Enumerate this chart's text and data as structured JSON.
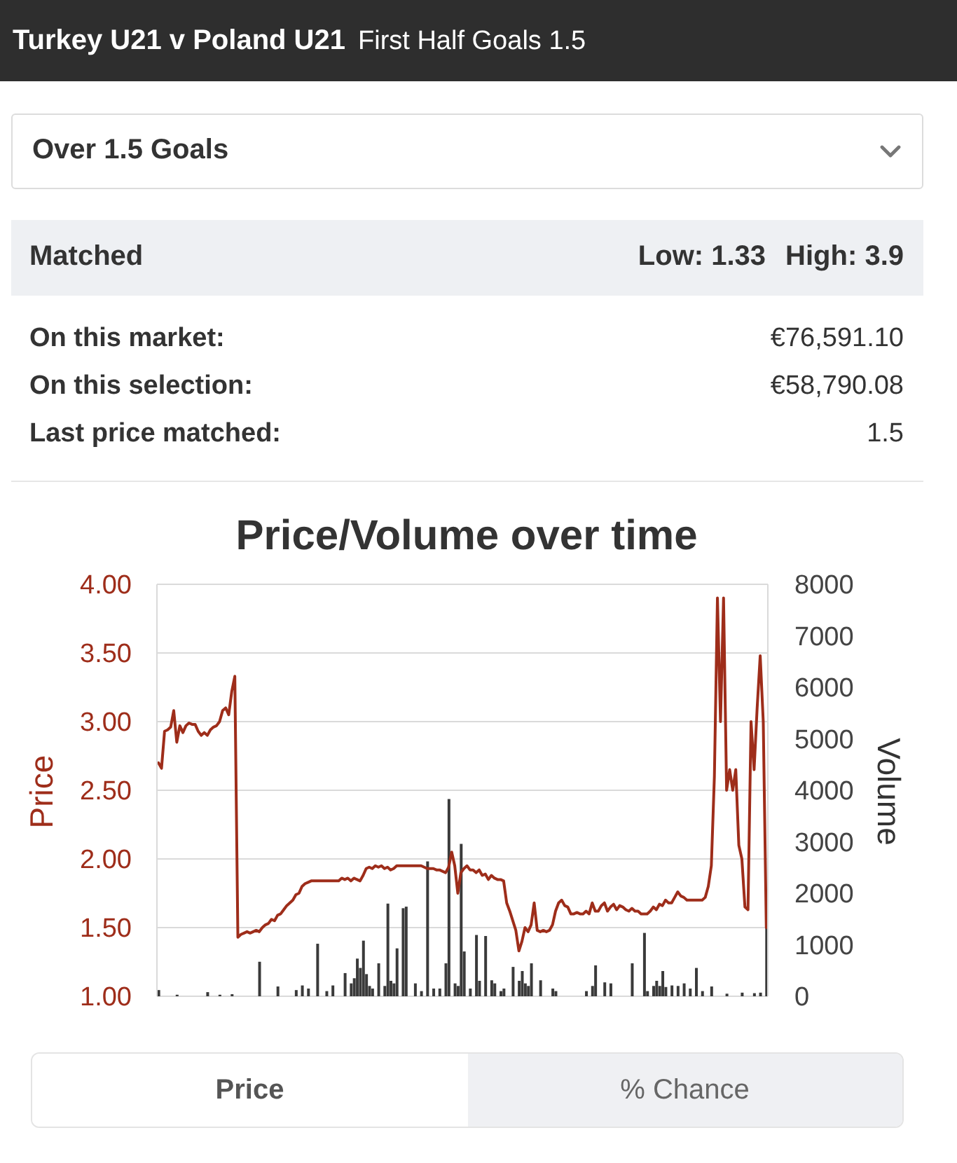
{
  "chart_data": {
    "type": "line",
    "title": "Price/Volume over time",
    "ylabel": "Price",
    "y2label": "Volume",
    "annotations": [
      "Turkey U21 v Poland U21",
      "First Half Goals 1.5",
      "Over 1.5 Goals",
      "Matched",
      "Low: 1.33",
      "High: 3.9",
      "On this market:",
      "€76,591.10",
      "On this selection:",
      "€58,790.08",
      "Last price matched:",
      "1.5",
      "Price",
      "% Chance"
    ],
    "categories": [
      null,
      null,
      null,
      null,
      null,
      null,
      null,
      null,
      null,
      null,
      null,
      null,
      null,
      null,
      null,
      null,
      null,
      null,
      null,
      null,
      null,
      null,
      null,
      null,
      null,
      null,
      null,
      null,
      null,
      null,
      null,
      null,
      null,
      null,
      null,
      null,
      null,
      null,
      null,
      null,
      null,
      null,
      null,
      null,
      null,
      null,
      null,
      null,
      null,
      null,
      null,
      null,
      null,
      null,
      null,
      null,
      null,
      null,
      null,
      null,
      null,
      null,
      null,
      null,
      null,
      null,
      null,
      null,
      null,
      null,
      null,
      null,
      null,
      null,
      null,
      null,
      null,
      null,
      null,
      null,
      null,
      null,
      null,
      null,
      null,
      null,
      null,
      null,
      null,
      null,
      null,
      null,
      null,
      null,
      null,
      null,
      null,
      null,
      null,
      null,
      null,
      null,
      null,
      null,
      null,
      null,
      null,
      null,
      null,
      null,
      null,
      null,
      null,
      null,
      null,
      null,
      null,
      null,
      null,
      null,
      null,
      null,
      null,
      null,
      null,
      null,
      null,
      null,
      null,
      null,
      null,
      null,
      null,
      null,
      null,
      null,
      null,
      null,
      null,
      null,
      null,
      null,
      null,
      null,
      null,
      null,
      null,
      null,
      null,
      null,
      null,
      null,
      null,
      null,
      null,
      null,
      null,
      null,
      null,
      null,
      null,
      null,
      null,
      null,
      null,
      null,
      null,
      null,
      null,
      null,
      null,
      null,
      null,
      null,
      null,
      null,
      null,
      null,
      null,
      null,
      null,
      null,
      null,
      null,
      null,
      null,
      null,
      null,
      null,
      null,
      null,
      null,
      null,
      null,
      null,
      null,
      null,
      null,
      null,
      null
    ],
    "series": [
      {
        "type": "bar",
        "axis": "y2",
        "color": "#3a3a3a",
        "values": [
          120,
          null,
          null,
          null,
          null,
          null,
          30,
          null,
          null,
          null,
          null,
          null,
          null,
          null,
          null,
          null,
          80,
          null,
          null,
          null,
          30,
          null,
          null,
          null,
          40,
          null,
          null,
          null,
          null,
          null,
          null,
          null,
          null,
          670,
          null,
          null,
          null,
          null,
          null,
          190,
          null,
          null,
          null,
          null,
          null,
          120,
          null,
          210,
          null,
          150,
          null,
          null,
          1020,
          null,
          null,
          100,
          null,
          210,
          null,
          null,
          null,
          450,
          null,
          250,
          350,
          730,
          550,
          1080,
          430,
          200,
          150,
          null,
          640,
          null,
          200,
          1800,
          300,
          250,
          930,
          null,
          1710,
          1740,
          null,
          null,
          250,
          null,
          100,
          null,
          2620,
          null,
          150,
          null,
          150,
          null,
          640,
          3830,
          null,
          250,
          200,
          2960,
          870,
          null,
          150,
          null,
          1190,
          300,
          null,
          1170,
          null,
          310,
          250,
          null,
          100,
          150,
          null,
          null,
          570,
          null,
          300,
          490,
          250,
          200,
          640,
          null,
          null,
          310,
          null,
          null,
          null,
          150,
          100,
          null,
          null,
          null,
          null,
          null,
          null,
          null,
          null,
          null,
          100,
          null,
          200,
          600,
          null,
          null,
          270,
          null,
          250,
          null,
          null,
          null,
          null,
          null,
          null,
          640,
          null,
          null,
          null,
          1230,
          100,
          null,
          200,
          300,
          200,
          490,
          180,
          null,
          210,
          null,
          200,
          null,
          250,
          null,
          150,
          null,
          550,
          null,
          100,
          null,
          null,
          190,
          null,
          null,
          null,
          null,
          50,
          null,
          null,
          null,
          null,
          70,
          null,
          null,
          null,
          60,
          null,
          70,
          null,
          1380
        ]
      },
      {
        "color": "#9e2d1a",
        "values": [
          2.7,
          2.66,
          2.93,
          2.94,
          2.96,
          3.08,
          2.85,
          2.97,
          2.92,
          2.97,
          2.99,
          2.98,
          2.98,
          2.93,
          2.9,
          2.92,
          2.9,
          2.94,
          2.96,
          2.97,
          3.0,
          3.08,
          3.1,
          3.05,
          3.22,
          3.33,
          1.43,
          1.45,
          1.46,
          1.47,
          1.46,
          1.47,
          1.48,
          1.47,
          1.5,
          1.52,
          1.53,
          1.56,
          1.55,
          1.59,
          1.6,
          1.63,
          1.66,
          1.68,
          1.7,
          1.74,
          1.75,
          1.8,
          1.82,
          1.83,
          1.84,
          1.84,
          1.84,
          1.84,
          1.84,
          1.84,
          1.84,
          1.84,
          1.84,
          1.84,
          1.86,
          1.85,
          1.86,
          1.84,
          1.86,
          1.85,
          1.84,
          1.88,
          1.93,
          1.94,
          1.93,
          1.95,
          1.94,
          1.95,
          1.93,
          1.94,
          1.92,
          1.93,
          1.95,
          1.95,
          1.95,
          1.95,
          1.95,
          1.95,
          1.95,
          1.95,
          1.95,
          1.94,
          1.93,
          1.93,
          1.93,
          1.92,
          1.92,
          1.91,
          1.9,
          1.94,
          2.05,
          1.95,
          1.75,
          1.9,
          1.93,
          1.95,
          1.92,
          1.92,
          1.9,
          1.92,
          1.88,
          1.89,
          1.85,
          1.88,
          1.86,
          1.85,
          1.85,
          1.84,
          1.68,
          1.62,
          1.55,
          1.48,
          1.33,
          1.4,
          1.5,
          1.47,
          1.52,
          1.68,
          1.48,
          1.47,
          1.48,
          1.47,
          1.48,
          1.52,
          1.62,
          1.68,
          1.7,
          1.66,
          1.65,
          1.6,
          1.6,
          1.61,
          1.6,
          1.6,
          1.62,
          1.6,
          1.68,
          1.62,
          1.62,
          1.66,
          1.68,
          1.62,
          1.65,
          1.67,
          1.63,
          1.66,
          1.65,
          1.63,
          1.62,
          1.64,
          1.62,
          1.62,
          1.6,
          1.6,
          1.6,
          1.62,
          1.65,
          1.63,
          1.67,
          1.66,
          1.7,
          1.68,
          1.68,
          1.72,
          1.76,
          1.73,
          1.72,
          1.7,
          1.7,
          1.7,
          1.7,
          1.7,
          1.7,
          1.72,
          1.8,
          1.95,
          2.6,
          3.9,
          3.0,
          3.9,
          2.5,
          2.65,
          2.5,
          2.65,
          2.1,
          2.0,
          1.65,
          1.63,
          3.0,
          2.65,
          3.1,
          3.48,
          3.0,
          1.5
        ]
      }
    ],
    "ylim": [
      1,
      4
    ],
    "yticks": [
      {
        "value": 1,
        "label": "1.00"
      },
      {
        "value": 1.5,
        "label": "1.50"
      },
      {
        "value": 2,
        "label": "2.00"
      },
      {
        "value": 2.5,
        "label": "2.50"
      },
      {
        "value": 3,
        "label": "3.00"
      },
      {
        "value": 3.5,
        "label": "3.50"
      },
      {
        "value": 4,
        "label": "4.00"
      }
    ],
    "y2lim": [
      0,
      8000
    ],
    "y2ticks": [
      0,
      1000,
      2000,
      3000,
      4000,
      5000,
      6000,
      7000,
      8000
    ],
    "grid": "y"
  }
}
